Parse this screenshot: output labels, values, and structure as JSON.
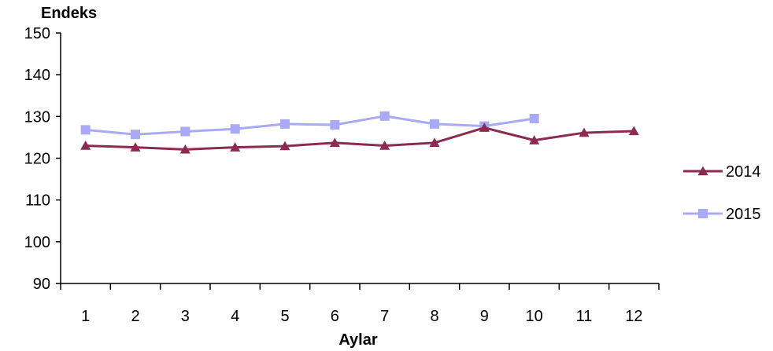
{
  "chart_data": {
    "type": "line",
    "title": "",
    "ylabel": "Endeks",
    "xlabel": "Aylar",
    "ylim": [
      90,
      150
    ],
    "yticks": [
      90,
      100,
      110,
      120,
      130,
      140,
      150
    ],
    "categories": [
      "1",
      "2",
      "3",
      "4",
      "5",
      "6",
      "7",
      "8",
      "9",
      "10",
      "11",
      "12"
    ],
    "grid": false,
    "legend_position": "right",
    "series": [
      {
        "name": "2014",
        "color": "#8b2a52",
        "marker": "triangle",
        "values": [
          123.0,
          122.6,
          122.1,
          122.6,
          122.9,
          123.7,
          123.0,
          123.7,
          127.3,
          124.3,
          126.1,
          126.5
        ]
      },
      {
        "name": "2015",
        "color": "#a9a9f5",
        "marker": "square",
        "values": [
          126.8,
          125.7,
          126.4,
          127.0,
          128.2,
          128.0,
          130.1,
          128.2,
          127.7,
          129.5,
          null,
          null
        ]
      }
    ]
  }
}
